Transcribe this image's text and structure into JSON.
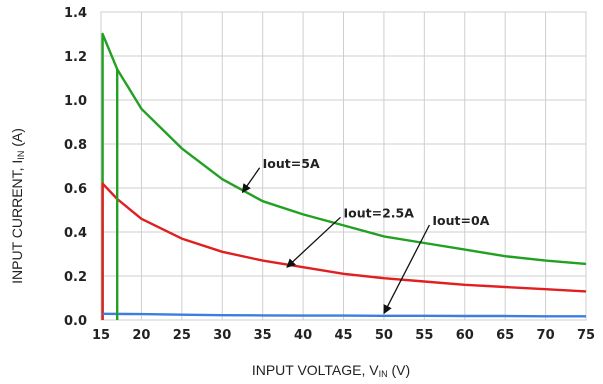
{
  "chart_data": {
    "type": "line",
    "title": "",
    "xlabel": "INPUT VOLTAGE, V",
    "xlabel_sub": "IN",
    "xlabel_unit": " (V)",
    "ylabel": "INPUT CURRENT, I",
    "ylabel_sub": "IN",
    "ylabel_unit": " (A)",
    "xlim": [
      15,
      75
    ],
    "ylim": [
      0,
      1.4
    ],
    "xticks": [
      "15",
      "20",
      "25",
      "30",
      "35",
      "40",
      "45",
      "50",
      "55",
      "60",
      "65",
      "70",
      "75"
    ],
    "yticks": [
      "0.0",
      "0.2",
      "0.4",
      "0.6",
      "0.8",
      "1.0",
      "1.2",
      "1.4"
    ],
    "grid": true,
    "series": [
      {
        "name": "Iout=5A",
        "color": "#22a022",
        "x": [
          15.2,
          15.2,
          17,
          20,
          25,
          30,
          35,
          40,
          45,
          50,
          55,
          60,
          65,
          70,
          75
        ],
        "y": [
          0,
          1.3,
          1.14,
          0.96,
          0.78,
          0.64,
          0.54,
          0.48,
          0.43,
          0.38,
          0.35,
          0.32,
          0.29,
          0.27,
          0.255
        ]
      },
      {
        "name": "Iout=2.5A",
        "color": "#e02020",
        "x": [
          15.2,
          15.2,
          17,
          20,
          25,
          30,
          35,
          40,
          45,
          50,
          55,
          60,
          65,
          70,
          75
        ],
        "y": [
          0,
          0.62,
          0.55,
          0.46,
          0.37,
          0.31,
          0.27,
          0.24,
          0.21,
          0.19,
          0.175,
          0.16,
          0.15,
          0.14,
          0.13
        ]
      },
      {
        "name": "Iout=0A",
        "color": "#3a7ee0",
        "x": [
          15.2,
          20,
          25,
          30,
          35,
          40,
          45,
          50,
          55,
          60,
          65,
          70,
          75
        ],
        "y": [
          0.028,
          0.027,
          0.024,
          0.022,
          0.021,
          0.02,
          0.02,
          0.019,
          0.019,
          0.018,
          0.018,
          0.017,
          0.017
        ]
      },
      {
        "name": "",
        "color": "#22a022",
        "x": [
          17,
          17
        ],
        "y": [
          0,
          1.14
        ]
      }
    ],
    "annotations": [
      {
        "text": "Iout=5A",
        "tx": 35,
        "ty": 0.71,
        "ax": 32.5,
        "ay": 0.58
      },
      {
        "text": "Iout=2.5A",
        "tx": 45,
        "ty": 0.485,
        "ax": 38,
        "ay": 0.24
      },
      {
        "text": "Iout=0A",
        "tx": 56,
        "ty": 0.45,
        "ax": 50,
        "ay": 0.03
      }
    ]
  }
}
